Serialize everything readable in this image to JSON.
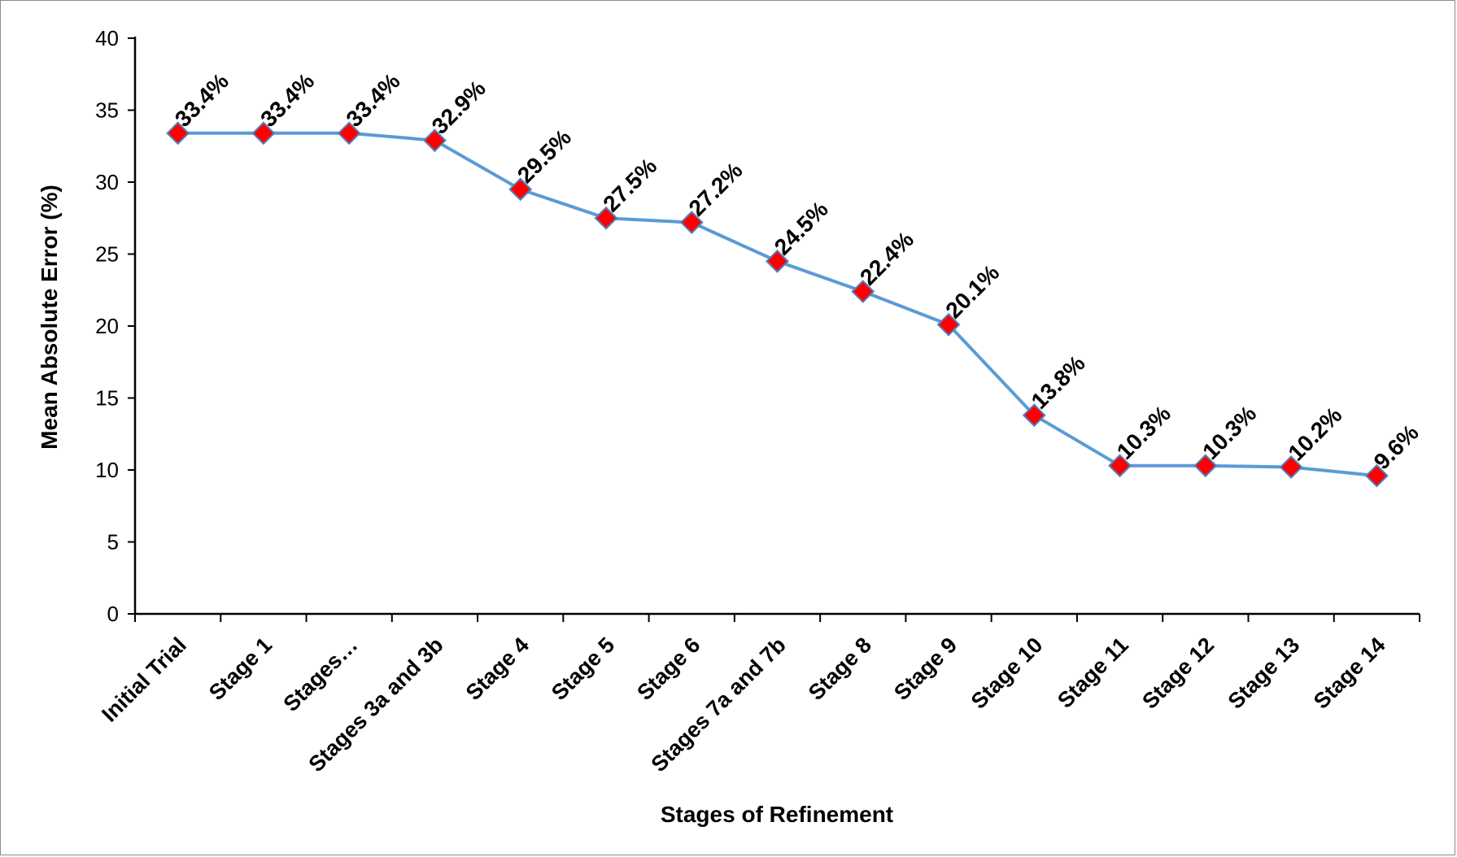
{
  "chart_data": {
    "type": "line",
    "title": "",
    "xlabel": "Stages of Refinement",
    "ylabel": "Mean Absolute Error (%)",
    "ylim": [
      0,
      40
    ],
    "yticks": [
      0,
      5,
      10,
      15,
      20,
      25,
      30,
      35,
      40
    ],
    "grid": false,
    "legend": "none",
    "categories": [
      "Initial Trial",
      "Stage 1",
      "Stages…",
      "Stages 3a and 3b",
      "Stage 4",
      "Stage 5",
      "Stage 6",
      "Stages 7a and 7b",
      "Stage 8",
      "Stage 9",
      "Stage 10",
      "Stage 11",
      "Stage 12",
      "Stage 13",
      "Stage 14"
    ],
    "series": [
      {
        "values": [
          33.4,
          33.4,
          33.4,
          32.9,
          29.5,
          27.5,
          27.2,
          24.5,
          22.4,
          20.1,
          13.8,
          10.3,
          10.3,
          10.2,
          9.6
        ],
        "data_labels": [
          "33.4%",
          "33.4%",
          "33.4%",
          "32.9%",
          "29.5%",
          "27.5%",
          "27.2%",
          "24.5%",
          "22.4%",
          "20.1%",
          "13.8%",
          "10.3%",
          "10.3%",
          "10.2%",
          "9.6%"
        ],
        "line_color": "#5b9bd5",
        "marker": "diamond",
        "marker_color": "#ff0000",
        "marker_edge_color": "#4f81bd"
      }
    ]
  }
}
